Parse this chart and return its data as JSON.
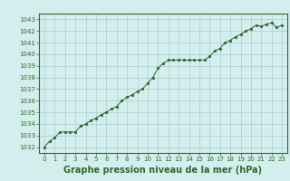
{
  "x": [
    0,
    0.5,
    1,
    1.5,
    2,
    2.5,
    3,
    3.5,
    4,
    4.5,
    5,
    5.5,
    6,
    6.5,
    7,
    7.5,
    8,
    8.5,
    9,
    9.5,
    10,
    10.5,
    11,
    11.5,
    12,
    12.5,
    13,
    13.5,
    14,
    14.5,
    15,
    15.5,
    16,
    16.5,
    17,
    17.5,
    18,
    18.5,
    19,
    19.5,
    20,
    20.5,
    21,
    21.5,
    22,
    22.5,
    23
  ],
  "y": [
    1032.0,
    1032.5,
    1032.8,
    1033.3,
    1033.3,
    1033.3,
    1033.3,
    1033.8,
    1034.0,
    1034.3,
    1034.5,
    1034.8,
    1035.0,
    1035.3,
    1035.5,
    1036.0,
    1036.3,
    1036.5,
    1036.8,
    1037.0,
    1037.5,
    1038.0,
    1038.8,
    1039.2,
    1039.5,
    1039.5,
    1039.5,
    1039.5,
    1039.5,
    1039.5,
    1039.5,
    1039.5,
    1039.8,
    1040.3,
    1040.5,
    1041.0,
    1041.2,
    1041.5,
    1041.7,
    1042.0,
    1042.2,
    1042.5,
    1042.4,
    1042.6,
    1042.7,
    1042.3,
    1042.5
  ],
  "line_color": "#2d6a2d",
  "marker_color": "#2d6a2d",
  "bg_color": "#d4eeee",
  "grid_color": "#aacccc",
  "border_color": "#2d6a2d",
  "xlabel": "Graphe pression niveau de la mer (hPa)",
  "xlabel_fontsize": 7,
  "xlabel_color": "#2d6a2d",
  "ylabel_ticks": [
    1032,
    1033,
    1034,
    1035,
    1036,
    1037,
    1038,
    1039,
    1040,
    1041,
    1042,
    1043
  ],
  "xticks": [
    0,
    1,
    2,
    3,
    4,
    5,
    6,
    7,
    8,
    9,
    10,
    11,
    12,
    13,
    14,
    15,
    16,
    17,
    18,
    19,
    20,
    21,
    22,
    23
  ],
  "xlim": [
    -0.5,
    23.5
  ],
  "ylim": [
    1031.5,
    1043.5
  ]
}
